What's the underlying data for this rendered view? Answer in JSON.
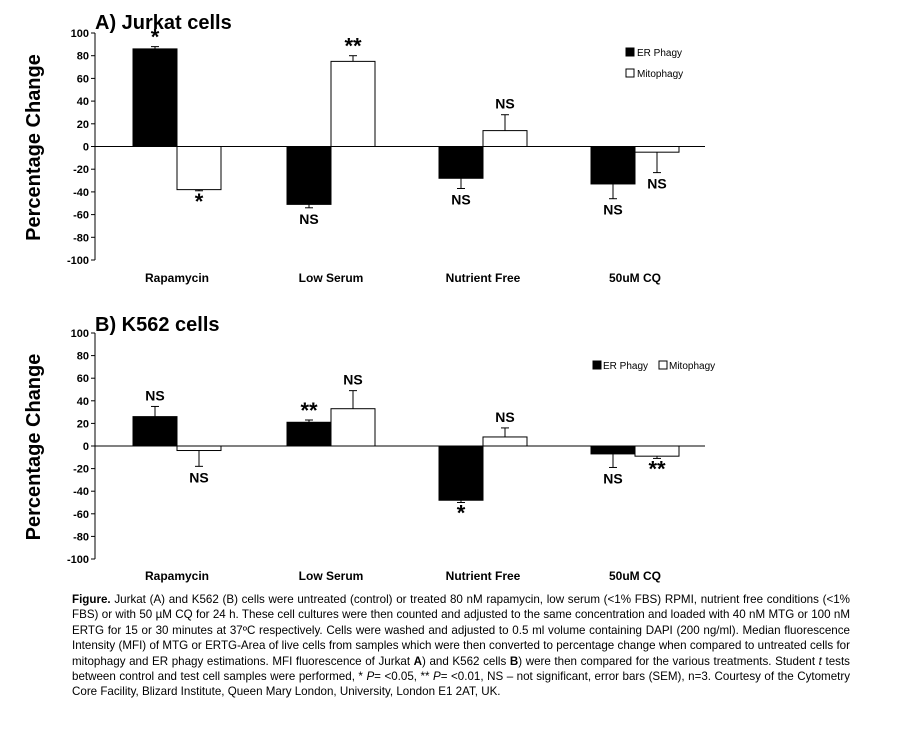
{
  "chart_data": [
    {
      "type": "bar",
      "title": "A) Jurkat cells",
      "ylabel": "Percentage Change",
      "ylim": [
        -100,
        100
      ],
      "yticks": [
        100,
        80,
        60,
        40,
        20,
        0,
        -20,
        -40,
        -60,
        -80,
        -100
      ],
      "categories": [
        "Rapamycin",
        "Low Serum",
        "Nutrient Free",
        "50uM CQ"
      ],
      "legend_position": "top-right",
      "legend_layout": "vertical",
      "series": [
        {
          "name": "ER Phagy",
          "color": "#000000",
          "values": [
            86,
            -51,
            -28,
            -33
          ],
          "errors": [
            2,
            3,
            9,
            13
          ],
          "labels": [
            "*",
            "NS",
            "NS",
            "NS"
          ]
        },
        {
          "name": "Mitophagy",
          "color": "#ffffff",
          "values": [
            -38,
            75,
            14,
            -5
          ],
          "errors": [
            1,
            5,
            14,
            18
          ],
          "labels": [
            "*",
            "**",
            "NS",
            "NS"
          ]
        }
      ]
    },
    {
      "type": "bar",
      "title": "B) K562 cells",
      "ylabel": "Percentage Change",
      "ylim": [
        -100,
        100
      ],
      "yticks": [
        100,
        80,
        60,
        40,
        20,
        0,
        -20,
        -40,
        -60,
        -80,
        -100
      ],
      "categories": [
        "Rapamycin",
        "Low Serum",
        "Nutrient Free",
        "50uM CQ"
      ],
      "legend_position": "top-right",
      "legend_layout": "horizontal",
      "series": [
        {
          "name": "ER Phagy",
          "color": "#000000",
          "values": [
            26,
            21,
            -48,
            -7
          ],
          "errors": [
            9,
            2,
            2,
            12
          ],
          "labels": [
            "NS",
            "**",
            "*",
            "NS"
          ]
        },
        {
          "name": "Mitophagy",
          "color": "#ffffff",
          "values": [
            -4,
            33,
            8,
            -9
          ],
          "errors": [
            14,
            16,
            8,
            2
          ],
          "labels": [
            "NS",
            "NS",
            "NS",
            "**"
          ]
        }
      ]
    }
  ],
  "caption": {
    "label": "Figure.",
    "seg1": " Jurkat (A) and K562 (B) cells were untreated (control) or treated 80 nM rapamycin, low serum (<1% FBS) RPMI, nutrient free conditions (<1% FBS) or with 50 µM CQ for 24 h. These cell cultures were then counted and adjusted to the same concentration and loaded with 40 nM MTG or 100 nM ERTG for 15 or 30 minutes at 37ºC respectively. Cells were washed and adjusted to 0.5 ml volume containing DAPI (200 ng/ml). Median fluorescence Intensity (MFI) of MTG or ERTG-Area  of live cells from samples which were then converted to percentage change when compared to untreated cells for mitophagy and ER phagy estimations. MFI fluorescence of Jurkat ",
    "a_bold": "A",
    "seg2": ") and K562 cells ",
    "b_bold": "B",
    "seg3": ") were then compared for the various treatments. Student ",
    "t_italic": "t",
    "seg4": " tests between control and test cell samples were performed,  * ",
    "p1_italic": "P",
    "seg5": "= <0.05, ** ",
    "p2_italic": "P",
    "seg6": "= <0.01, NS – not significant, error bars (SEM), n=3. Courtesy of the Cytometry Core Facility, Blizard Institute, Queen Mary London, University, London E1 2AT, UK."
  }
}
